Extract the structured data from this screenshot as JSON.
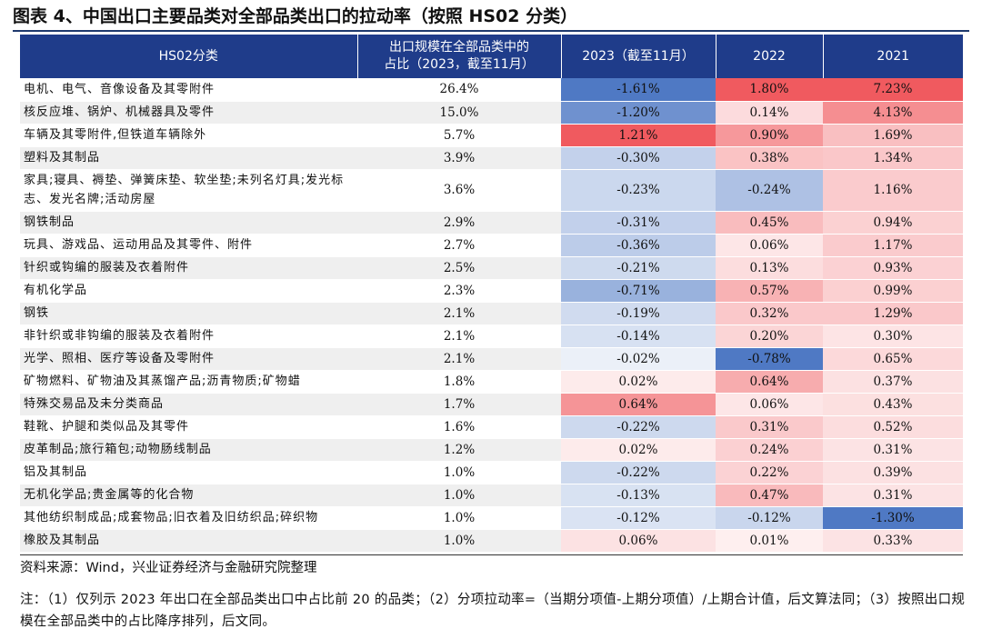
{
  "title": "图表 4、中国出口主要品类对全部品类出口的拉动率（按照 HS02 分类）",
  "table": {
    "headers": {
      "category": "HS02分类",
      "share_line1": "出口规模在全部品类中的",
      "share_line2": "占比（2023，截至11月）",
      "y2023": "2023（截至11月）",
      "y2022": "2022",
      "y2021": "2021"
    },
    "rows": [
      {
        "name": "电机、电气、音像设备及其零附件",
        "share": "26.4%",
        "v2023": "-1.61%",
        "v2022": "1.80%",
        "v2021": "7.23%",
        "n2023": -1.61,
        "n2022": 1.8,
        "n2021": 7.23
      },
      {
        "name": "核反应堆、锅炉、机械器具及零件",
        "share": "15.0%",
        "v2023": "-1.20%",
        "v2022": "0.14%",
        "v2021": "4.13%",
        "n2023": -1.2,
        "n2022": 0.14,
        "n2021": 4.13
      },
      {
        "name": "车辆及其零附件,但铁道车辆除外",
        "share": "5.7%",
        "v2023": "1.21%",
        "v2022": "0.90%",
        "v2021": "1.69%",
        "n2023": 1.21,
        "n2022": 0.9,
        "n2021": 1.69
      },
      {
        "name": "塑料及其制品",
        "share": "3.9%",
        "v2023": "-0.30%",
        "v2022": "0.38%",
        "v2021": "1.34%",
        "n2023": -0.3,
        "n2022": 0.38,
        "n2021": 1.34
      },
      {
        "name": "家具;寝具、褥垫、弹簧床垫、软坐垫;未列名灯具;发光标志、发光名牌;活动房屋",
        "share": "3.6%",
        "v2023": "-0.23%",
        "v2022": "-0.24%",
        "v2021": "1.16%",
        "n2023": -0.23,
        "n2022": -0.24,
        "n2021": 1.16,
        "tall": true
      },
      {
        "name": "钢铁制品",
        "share": "2.9%",
        "v2023": "-0.31%",
        "v2022": "0.45%",
        "v2021": "0.94%",
        "n2023": -0.31,
        "n2022": 0.45,
        "n2021": 0.94
      },
      {
        "name": "玩具、游戏品、运动用品及其零件、附件",
        "share": "2.7%",
        "v2023": "-0.36%",
        "v2022": "0.06%",
        "v2021": "1.17%",
        "n2023": -0.36,
        "n2022": 0.06,
        "n2021": 1.17
      },
      {
        "name": "针织或钩编的服装及衣着附件",
        "share": "2.5%",
        "v2023": "-0.21%",
        "v2022": "0.13%",
        "v2021": "0.93%",
        "n2023": -0.21,
        "n2022": 0.13,
        "n2021": 0.93
      },
      {
        "name": "有机化学品",
        "share": "2.3%",
        "v2023": "-0.71%",
        "v2022": "0.57%",
        "v2021": "0.99%",
        "n2023": -0.71,
        "n2022": 0.57,
        "n2021": 0.99
      },
      {
        "name": "钢铁",
        "share": "2.1%",
        "v2023": "-0.19%",
        "v2022": "0.32%",
        "v2021": "1.29%",
        "n2023": -0.19,
        "n2022": 0.32,
        "n2021": 1.29
      },
      {
        "name": "非针织或非钩编的服装及衣着附件",
        "share": "2.1%",
        "v2023": "-0.14%",
        "v2022": "0.20%",
        "v2021": "0.30%",
        "n2023": -0.14,
        "n2022": 0.2,
        "n2021": 0.3
      },
      {
        "name": "光学、照相、医疗等设备及零附件",
        "share": "2.1%",
        "v2023": "-0.02%",
        "v2022": "-0.78%",
        "v2021": "0.65%",
        "n2023": -0.02,
        "n2022": -0.78,
        "n2021": 0.65
      },
      {
        "name": "矿物燃料、矿物油及其蒸馏产品;沥青物质;矿物蜡",
        "share": "1.8%",
        "v2023": "0.02%",
        "v2022": "0.64%",
        "v2021": "0.37%",
        "n2023": 0.02,
        "n2022": 0.64,
        "n2021": 0.37
      },
      {
        "name": "特殊交易品及未分类商品",
        "share": "1.7%",
        "v2023": "0.64%",
        "v2022": "0.06%",
        "v2021": "0.43%",
        "n2023": 0.64,
        "n2022": 0.06,
        "n2021": 0.43
      },
      {
        "name": "鞋靴、护腿和类似品及其零件",
        "share": "1.6%",
        "v2023": "-0.22%",
        "v2022": "0.31%",
        "v2021": "0.52%",
        "n2023": -0.22,
        "n2022": 0.31,
        "n2021": 0.52
      },
      {
        "name": "皮革制品;旅行箱包;动物肠线制品",
        "share": "1.2%",
        "v2023": "0.02%",
        "v2022": "0.24%",
        "v2021": "0.31%",
        "n2023": 0.02,
        "n2022": 0.24,
        "n2021": 0.31
      },
      {
        "name": "铝及其制品",
        "share": "1.0%",
        "v2023": "-0.22%",
        "v2022": "0.22%",
        "v2021": "0.39%",
        "n2023": -0.22,
        "n2022": 0.22,
        "n2021": 0.39
      },
      {
        "name": "无机化学品;贵金属等的化合物",
        "share": "1.0%",
        "v2023": "-0.13%",
        "v2022": "0.47%",
        "v2021": "0.31%",
        "n2023": -0.13,
        "n2022": 0.47,
        "n2021": 0.31
      },
      {
        "name": "其他纺织制成品;成套物品;旧衣着及旧纺织品;碎织物",
        "share": "1.0%",
        "v2023": "-0.12%",
        "v2022": "-0.12%",
        "v2021": "-1.30%",
        "n2023": -0.12,
        "n2022": -0.12,
        "n2021": -1.3
      },
      {
        "name": "橡胶及其制品",
        "share": "1.0%",
        "v2023": "0.06%",
        "v2022": "0.01%",
        "v2021": "0.33%",
        "n2023": 0.06,
        "n2022": 0.01,
        "n2021": 0.33
      }
    ]
  },
  "colors": {
    "header_bg": "#1f3c8a",
    "negative_max": "#4f79c4",
    "positive_max": "#f05a5f"
  },
  "source": "资料来源：Wind，兴业证券经济与金融研究院整理",
  "note": "注：（1）仅列示 2023 年出口在全部品类出口中占比前 20 的品类；（2）分项拉动率=（当期分项值-上期分项值）/上期合计值，后文算法同；（3）按照出口规模在全部品类中的占比降序排列，后文同。"
}
